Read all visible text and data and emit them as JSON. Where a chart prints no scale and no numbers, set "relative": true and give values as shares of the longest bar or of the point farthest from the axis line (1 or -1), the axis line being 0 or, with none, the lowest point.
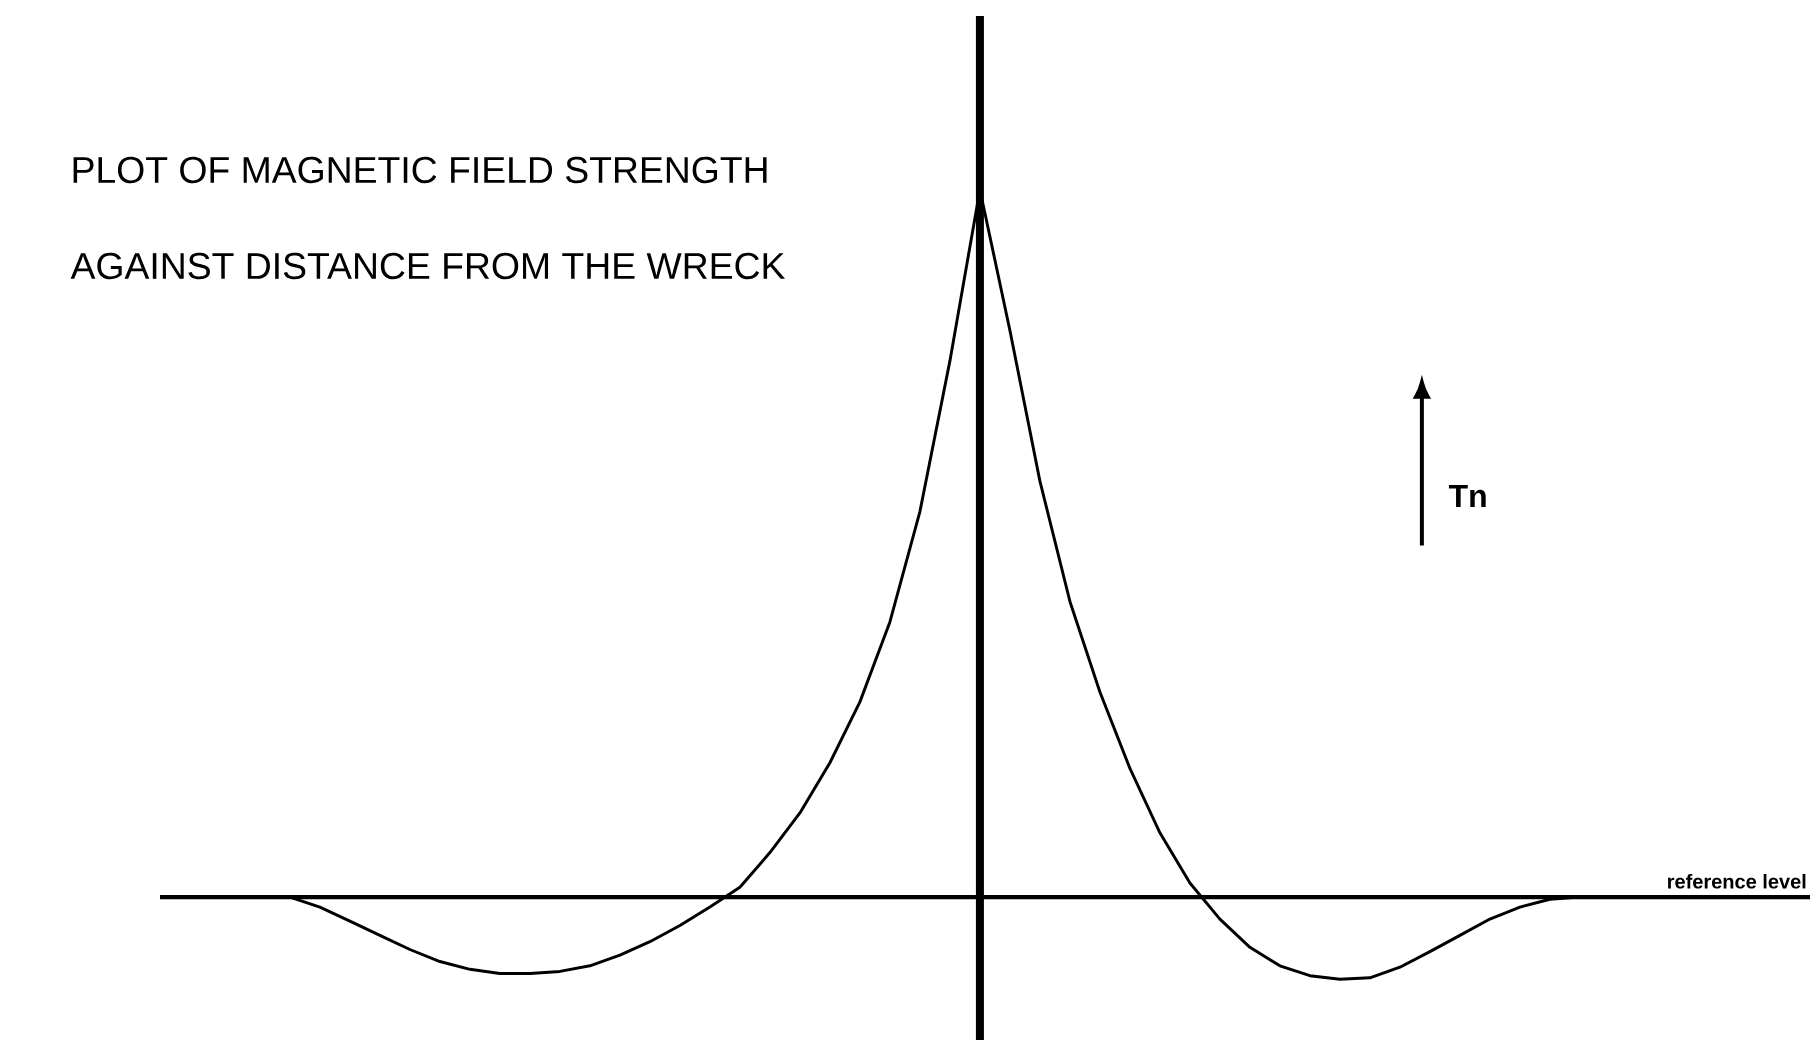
{
  "chart_data": {
    "type": "line",
    "title": "PLOT OF MAGNETIC FIELD STRENGTH",
    "subtitle": "AGAINST DISTANCE FROM THE WRECK",
    "ylabel": "Tn",
    "relative": true,
    "marker": "none",
    "line_style": "solid",
    "categories": [
      null,
      null,
      null,
      null,
      null,
      null,
      null,
      null,
      null,
      null,
      null,
      null,
      null,
      null,
      null,
      null,
      null,
      null,
      null,
      null,
      null,
      null,
      null,
      null,
      null,
      null,
      null,
      null,
      null,
      null,
      null,
      null,
      null,
      null,
      null,
      null,
      null,
      null,
      null,
      null,
      null,
      null,
      null,
      null,
      null
    ],
    "series": [
      {
        "color": "#000000",
        "values": [
          0,
          -0.014,
          -0.034,
          -0.054,
          -0.074,
          -0.091,
          -0.102,
          -0.108,
          -0.108,
          -0.105,
          -0.097,
          -0.082,
          -0.063,
          -0.04,
          -0.014,
          0.014,
          0.063,
          0.119,
          0.19,
          0.276,
          0.389,
          0.545,
          0.758,
          1,
          0.801,
          0.588,
          0.418,
          0.29,
          0.182,
          0.091,
          0.02,
          -0.031,
          -0.071,
          -0.097,
          -0.111,
          -0.116,
          -0.114,
          -0.099,
          -0.077,
          -0.054,
          -0.031,
          -0.014,
          -0.003,
          0,
          0
        ]
      }
    ],
    "ref_lines": [
      {
        "axis": "y",
        "value": 0,
        "label": "reference level"
      }
    ]
  }
}
